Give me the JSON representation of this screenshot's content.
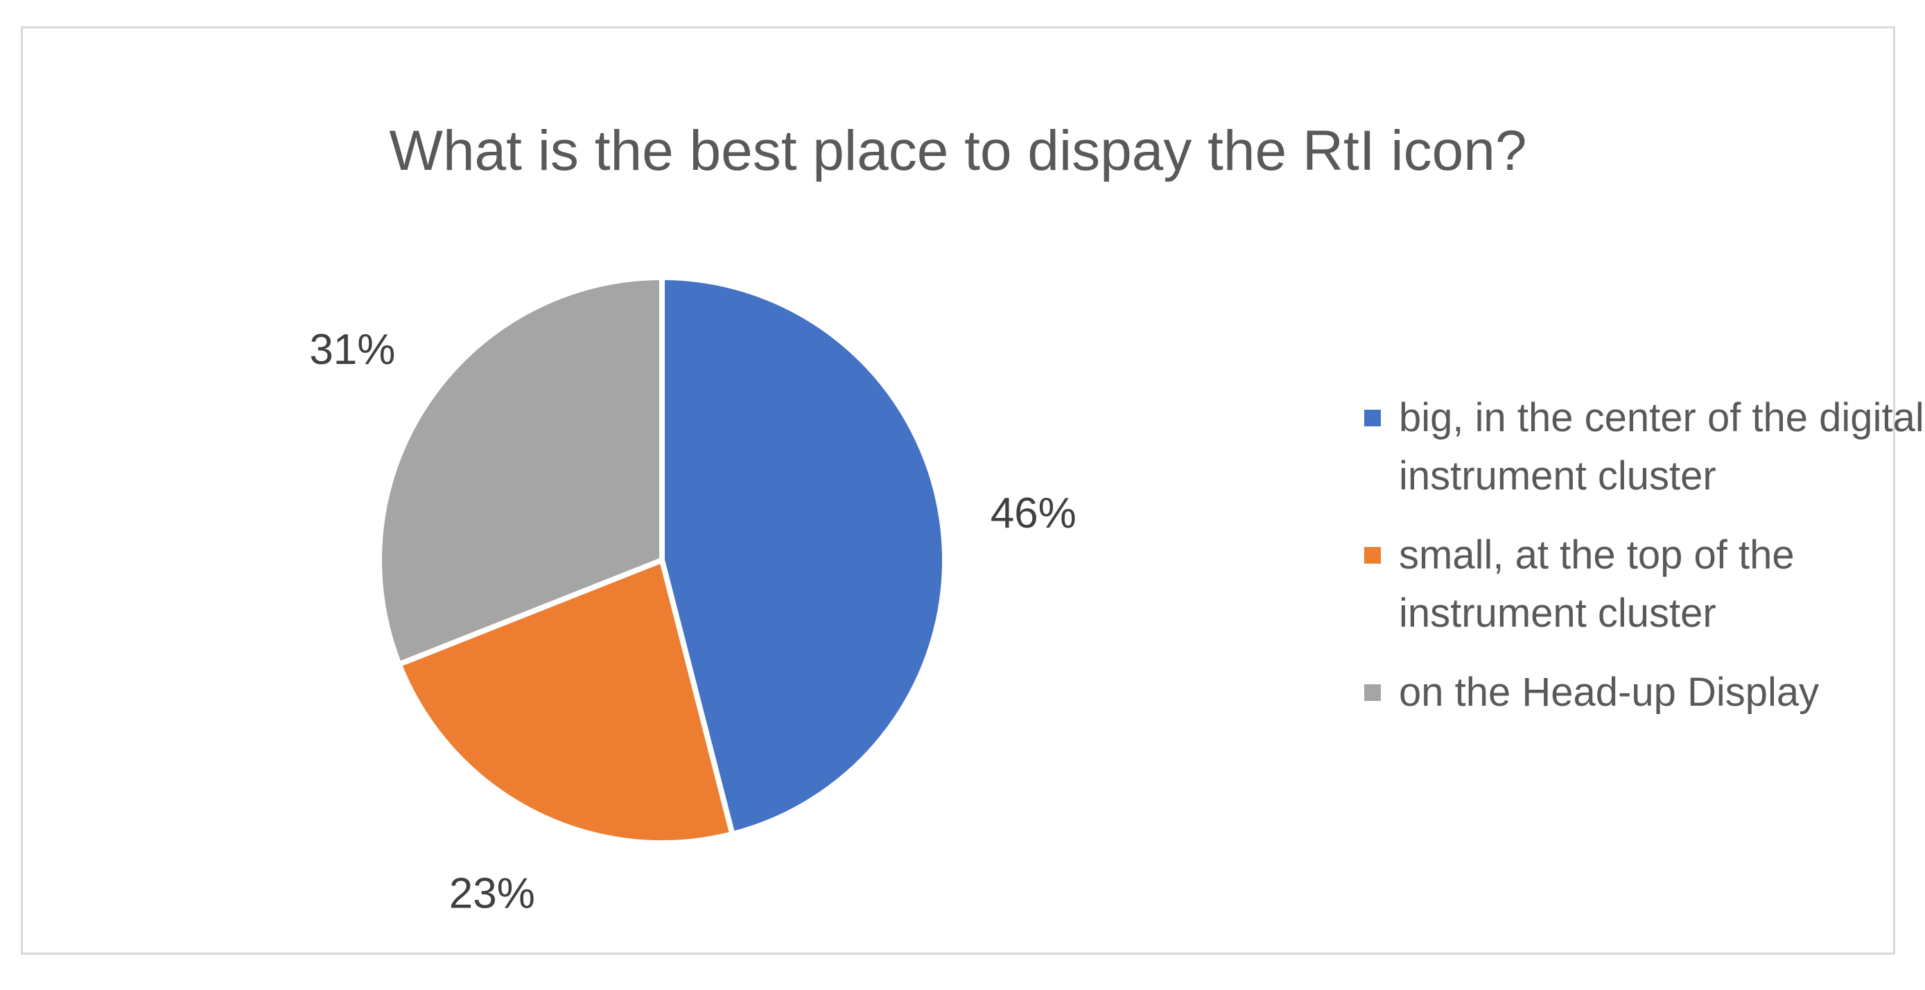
{
  "chart_data": {
    "type": "pie",
    "title": "What is the best place to dispay the RtI icon?",
    "categories": [
      "big, in the center of the digital instrument cluster",
      "small, at the top of the instrument cluster",
      "on the Head-up Display"
    ],
    "values": [
      46,
      23,
      31
    ],
    "value_labels": [
      "46%",
      "23%",
      "31%"
    ],
    "colors": [
      "#4472c4",
      "#ed7d31",
      "#a5a5a5"
    ],
    "legend_position": "right",
    "start_angle": "12 o'clock",
    "direction": "clockwise"
  }
}
